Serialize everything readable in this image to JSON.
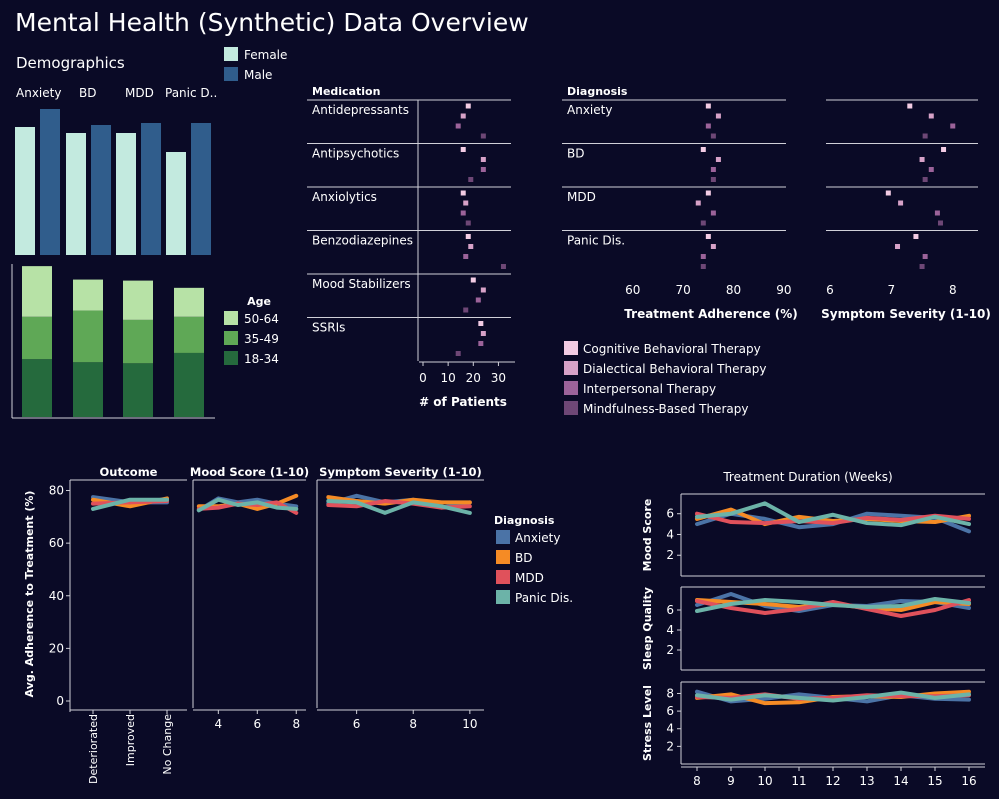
{
  "page": {
    "title": "Mental Health (Synthetic) Data Overview"
  },
  "colors": {
    "background": "#0a0a26",
    "female": "#c3eadf",
    "male": "#305d8c",
    "age_50_64": "#b7e2a6",
    "age_35_49": "#5fa856",
    "age_18_34": "#256a3d",
    "therapy": [
      "#f3cce4",
      "#d7a2c8",
      "#9c639a",
      "#6e4776"
    ],
    "diag_anxiety": "#4b73a6",
    "diag_bd": "#f58b25",
    "diag_mdd": "#e0515b",
    "diag_panic": "#6cb3a8"
  },
  "chart_data": [
    {
      "type": "bar",
      "title": "Demographics",
      "categories": [
        "Anxiety",
        "BD",
        "MDD",
        "Panic D.."
      ],
      "series": [
        {
          "name": "Female",
          "values": [
            128,
            122,
            122,
            103
          ]
        },
        {
          "name": "Male",
          "values": [
            146,
            130,
            132,
            132
          ]
        }
      ],
      "ylim": [
        0,
        150
      ]
    },
    {
      "type": "bar",
      "stacked": true,
      "legend_title": "Age",
      "categories": [
        "Anxiety",
        "BD",
        "MDD",
        "Panic Dis."
      ],
      "series": [
        {
          "name": "18-34",
          "values": [
            56,
            53,
            52,
            62
          ]
        },
        {
          "name": "35-49",
          "values": [
            41,
            50,
            42,
            35
          ]
        },
        {
          "name": "50-64",
          "values": [
            49,
            30,
            38,
            28
          ]
        }
      ],
      "ylim": [
        0,
        150
      ]
    },
    {
      "type": "scatter",
      "title": "Medication",
      "xlabel": "# of Patients",
      "xticks": [
        0,
        10,
        20,
        30
      ],
      "xlim": [
        0,
        35
      ],
      "legend": [
        "Cognitive Behavioral Therapy",
        "Dialectical Behavioral Therapy",
        "Interpersonal Therapy",
        "Mindfulness-Based Therapy"
      ],
      "groups": [
        {
          "label": "Antidepressants",
          "values": [
            18,
            16,
            14,
            24
          ]
        },
        {
          "label": "Antipsychotics",
          "values": [
            16,
            24,
            24,
            19
          ]
        },
        {
          "label": "Anxiolytics",
          "values": [
            16,
            17,
            16,
            18
          ]
        },
        {
          "label": "Benzodiazepines",
          "values": [
            18,
            19,
            17,
            32
          ]
        },
        {
          "label": "Mood Stabilizers",
          "values": [
            20,
            24,
            22,
            17
          ]
        },
        {
          "label": "SSRIs",
          "values": [
            23,
            24,
            23,
            14
          ]
        }
      ]
    },
    {
      "type": "scatter",
      "title": "Diagnosis",
      "xlabel": "Treatment Adherence (%)",
      "xticks": [
        60,
        70,
        80,
        90
      ],
      "xlim": [
        53.5,
        92
      ],
      "groups": [
        {
          "label": "Anxiety",
          "values": [
            75,
            77,
            75,
            76
          ]
        },
        {
          "label": "BD",
          "values": [
            74,
            77,
            76,
            76
          ]
        },
        {
          "label": "MDD",
          "values": [
            75,
            73,
            76,
            74
          ]
        },
        {
          "label": "Panic Dis.",
          "values": [
            75,
            76,
            74,
            74
          ]
        }
      ]
    },
    {
      "type": "scatter",
      "xlabel": "Symptom Severity (1-10)",
      "xticks": [
        6,
        7,
        8
      ],
      "xlim": [
        6,
        8.9
      ],
      "groups": [
        {
          "label": "Anxiety",
          "values": [
            7.3,
            7.65,
            8.0,
            7.55
          ]
        },
        {
          "label": "BD",
          "values": [
            7.85,
            7.5,
            7.65,
            7.55
          ]
        },
        {
          "label": "MDD",
          "values": [
            6.95,
            7.15,
            7.75,
            7.8
          ]
        },
        {
          "label": "Panic Dis.",
          "values": [
            7.4,
            7.1,
            7.55,
            7.5
          ]
        }
      ]
    },
    {
      "type": "line",
      "ylabel": "Avg. Adherence to Treatment (%)",
      "yticks": [
        0,
        20,
        40,
        60,
        80
      ],
      "ylim": [
        0,
        84
      ],
      "legend_title": "Diagnosis",
      "series_names": [
        "Anxiety",
        "BD",
        "MDD",
        "Panic Dis."
      ],
      "panels": [
        {
          "title": "Outcome",
          "x": [
            "Deteriorated",
            "Improved",
            "No Change"
          ],
          "series": [
            {
              "name": "Anxiety",
              "values": [
                77.5,
                75.5,
                75.5
              ]
            },
            {
              "name": "BD",
              "values": [
                76.5,
                74.0,
                77.0
              ]
            },
            {
              "name": "MDD",
              "values": [
                75.0,
                75.5,
                76.0
              ]
            },
            {
              "name": "Panic Dis.",
              "values": [
                73.0,
                76.5,
                76.5
              ]
            }
          ]
        },
        {
          "title": "Mood Score (1-10)",
          "xticks": [
            4,
            6,
            8
          ],
          "xlim": [
            2.7,
            8.5
          ],
          "x": [
            3,
            4,
            5,
            6,
            7,
            8
          ],
          "series": [
            {
              "name": "Anxiety",
              "values": [
                72.5,
                77.0,
                75.5,
                76.5,
                75.0,
                74.0
              ]
            },
            {
              "name": "BD",
              "values": [
                74.0,
                74.0,
                75.0,
                73.0,
                75.0,
                78.0
              ]
            },
            {
              "name": "MDD",
              "values": [
                73.0,
                73.5,
                75.0,
                74.5,
                75.5,
                71.5
              ]
            },
            {
              "name": "Panic Dis.",
              "values": [
                72.5,
                76.5,
                74.5,
                75.5,
                73.5,
                73.0
              ]
            }
          ]
        },
        {
          "title": "Symptom Severity (1-10)",
          "xticks": [
            6,
            8,
            10
          ],
          "xlim": [
            4.6,
            10.5
          ],
          "x": [
            5,
            6,
            7,
            8,
            9,
            10
          ],
          "series": [
            {
              "name": "Anxiety",
              "values": [
                75.0,
                78.0,
                75.5,
                76.5,
                73.5,
                75.5
              ]
            },
            {
              "name": "BD",
              "values": [
                77.5,
                76.0,
                75.0,
                76.5,
                75.5,
                75.5
              ]
            },
            {
              "name": "MDD",
              "values": [
                74.5,
                74.0,
                76.0,
                75.0,
                73.5,
                74.0
              ]
            },
            {
              "name": "Panic Dis.",
              "values": [
                76.0,
                75.5,
                71.5,
                75.5,
                74.0,
                71.5
              ]
            }
          ]
        }
      ]
    },
    {
      "type": "line",
      "title": "Treatment Duration (Weeks)",
      "x": [
        8,
        9,
        10,
        11,
        12,
        13,
        14,
        15,
        16
      ],
      "panels": [
        {
          "ylabel": "Mood Score",
          "yticks": [
            2,
            4,
            6
          ],
          "ylim": [
            0,
            7.9
          ],
          "series": [
            {
              "name": "Anxiety",
              "values": [
                5.0,
                6.0,
                5.5,
                4.7,
                5.0,
                6.0,
                5.8,
                5.6,
                4.3
              ]
            },
            {
              "name": "BD",
              "values": [
                5.5,
                6.4,
                5.0,
                5.7,
                5.3,
                5.5,
                5.3,
                5.2,
                5.8
              ]
            },
            {
              "name": "MDD",
              "values": [
                6.0,
                5.2,
                5.1,
                5.3,
                5.1,
                5.6,
                5.4,
                5.8,
                5.5
              ]
            },
            {
              "name": "Panic Dis.",
              "values": [
                5.7,
                6.0,
                7.0,
                5.2,
                5.9,
                5.1,
                4.9,
                5.7,
                5.0
              ]
            }
          ]
        },
        {
          "ylabel": "Sleep Quality",
          "yticks": [
            2,
            4,
            6
          ],
          "ylim": [
            0,
            8.3
          ],
          "series": [
            {
              "name": "Anxiety",
              "values": [
                6.5,
                7.6,
                6.4,
                5.9,
                6.5,
                6.4,
                6.9,
                6.8,
                6.2
              ]
            },
            {
              "name": "BD",
              "values": [
                7.0,
                6.8,
                6.6,
                6.3,
                6.6,
                6.2,
                6.0,
                6.8,
                6.6
              ]
            },
            {
              "name": "MDD",
              "values": [
                6.9,
                6.2,
                5.7,
                6.1,
                6.8,
                6.1,
                5.4,
                6.0,
                7.0
              ]
            },
            {
              "name": "Panic Dis.",
              "values": [
                5.9,
                6.6,
                7.0,
                6.8,
                6.5,
                6.3,
                6.4,
                7.1,
                6.7
              ]
            }
          ]
        },
        {
          "ylabel": "Stress Level",
          "yticks": [
            2,
            4,
            6,
            8
          ],
          "ylim": [
            0,
            9.3
          ],
          "series": [
            {
              "name": "Anxiety",
              "values": [
                8.2,
                7.1,
                7.4,
                7.9,
                7.5,
                7.1,
                7.8,
                7.4,
                7.3
              ]
            },
            {
              "name": "BD",
              "values": [
                7.5,
                7.9,
                6.9,
                7.0,
                7.6,
                7.7,
                7.6,
                8.0,
                8.2
              ]
            },
            {
              "name": "MDD",
              "values": [
                7.6,
                7.5,
                7.9,
                7.4,
                7.5,
                7.8,
                7.7,
                7.7,
                7.8
              ]
            },
            {
              "name": "Panic Dis.",
              "values": [
                7.8,
                7.3,
                7.8,
                7.5,
                7.2,
                7.6,
                8.1,
                7.5,
                7.9
              ]
            }
          ]
        }
      ]
    }
  ]
}
